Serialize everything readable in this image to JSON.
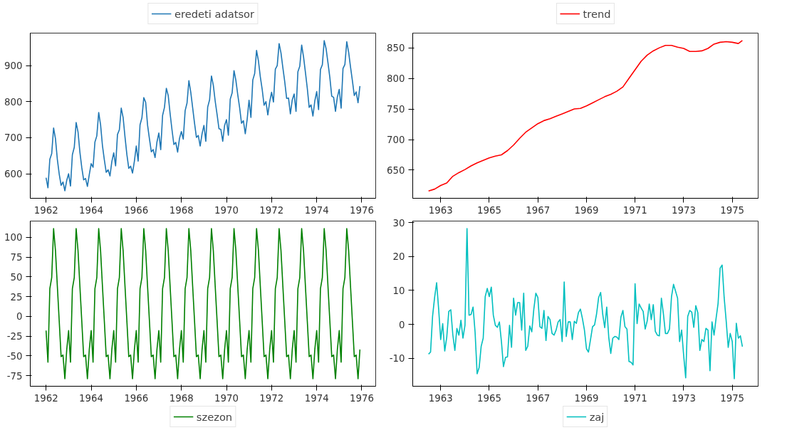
{
  "chart_data": [
    {
      "type": "line",
      "legend": "top",
      "grid": false,
      "x": [
        "1962-01",
        "1962-02",
        "1962-03",
        "1962-04",
        "1962-05",
        "1962-06",
        "1962-07",
        "1962-08",
        "1962-09",
        "1962-10",
        "1962-11",
        "1962-12",
        "1963-01",
        "1963-02",
        "1963-03",
        "1963-04",
        "1963-05",
        "1963-06",
        "1963-07",
        "1963-08",
        "1963-09",
        "1963-10",
        "1963-11",
        "1963-12",
        "1964-01",
        "1964-02",
        "1964-03",
        "1964-04",
        "1964-05",
        "1964-06",
        "1964-07",
        "1964-08",
        "1964-09",
        "1964-10",
        "1964-11",
        "1964-12",
        "1965-01",
        "1965-02",
        "1965-03",
        "1965-04",
        "1965-05",
        "1965-06",
        "1965-07",
        "1965-08",
        "1965-09",
        "1965-10",
        "1965-11",
        "1965-12",
        "1966-01",
        "1966-02",
        "1966-03",
        "1966-04",
        "1966-05",
        "1966-06",
        "1966-07",
        "1966-08",
        "1966-09",
        "1966-10",
        "1966-11",
        "1966-12",
        "1967-01",
        "1967-02",
        "1967-03",
        "1967-04",
        "1967-05",
        "1967-06",
        "1967-07",
        "1967-08",
        "1967-09",
        "1967-10",
        "1967-11",
        "1967-12",
        "1968-01",
        "1968-02",
        "1968-03",
        "1968-04",
        "1968-05",
        "1968-06",
        "1968-07",
        "1968-08",
        "1968-09",
        "1968-10",
        "1968-11",
        "1968-12",
        "1969-01",
        "1969-02",
        "1969-03",
        "1969-04",
        "1969-05",
        "1969-06",
        "1969-07",
        "1969-08",
        "1969-09",
        "1969-10",
        "1969-11",
        "1969-12",
        "1970-01",
        "1970-02",
        "1970-03",
        "1970-04",
        "1970-05",
        "1970-06",
        "1970-07",
        "1970-08",
        "1970-09",
        "1970-10",
        "1970-11",
        "1970-12",
        "1971-01",
        "1971-02",
        "1971-03",
        "1971-04",
        "1971-05",
        "1971-06",
        "1971-07",
        "1971-08",
        "1971-09",
        "1971-10",
        "1971-11",
        "1971-12",
        "1972-01",
        "1972-02",
        "1972-03",
        "1972-04",
        "1972-05",
        "1972-06",
        "1972-07",
        "1972-08",
        "1972-09",
        "1972-10",
        "1972-11",
        "1972-12",
        "1973-01",
        "1973-02",
        "1973-03",
        "1973-04",
        "1973-05",
        "1973-06",
        "1973-07",
        "1973-08",
        "1973-09",
        "1973-10",
        "1973-11",
        "1973-12",
        "1974-01",
        "1974-02",
        "1974-03",
        "1974-04",
        "1974-05",
        "1974-06",
        "1974-07",
        "1974-08",
        "1974-09",
        "1974-10",
        "1974-11",
        "1974-12",
        "1975-01",
        "1975-02",
        "1975-03",
        "1975-04",
        "1975-05",
        "1975-06",
        "1975-07",
        "1975-08",
        "1975-09",
        "1975-10",
        "1975-11",
        "1975-12"
      ],
      "xlim": [
        "1961-04-19",
        "1976-08-13"
      ],
      "xticks": [
        "1962",
        "1964",
        "1966",
        "1968",
        "1970",
        "1972",
        "1974",
        "1976"
      ],
      "ylim": [
        532,
        990
      ],
      "yticks": [
        600,
        700,
        800,
        900
      ],
      "series": [
        {
          "name": "eredeti adatsor",
          "color": "#1f77b4",
          "values": [
            589,
            561,
            640,
            656,
            727,
            697,
            640,
            599,
            568,
            577,
            553,
            582,
            600,
            566,
            653,
            673,
            742,
            716,
            660,
            617,
            583,
            587,
            565,
            598,
            628,
            618,
            688,
            705,
            770,
            736,
            678,
            639,
            604,
            611,
            594,
            634,
            658,
            622,
            709,
            722,
            782,
            756,
            702,
            653,
            615,
            621,
            602,
            635,
            677,
            635,
            736,
            755,
            811,
            798,
            735,
            697,
            661,
            667,
            645,
            688,
            713,
            667,
            762,
            784,
            837,
            817,
            767,
            722,
            681,
            687,
            660,
            698,
            717,
            696,
            775,
            796,
            858,
            826,
            783,
            740,
            701,
            706,
            677,
            711,
            734,
            690,
            785,
            805,
            871,
            845,
            801,
            764,
            725,
            723,
            690,
            734,
            750,
            707,
            807,
            824,
            886,
            859,
            819,
            783,
            740,
            747,
            711,
            751,
            804,
            756,
            860,
            878,
            942,
            913,
            869,
            834,
            790,
            800,
            763,
            800,
            826,
            799,
            890,
            900,
            961,
            935,
            894,
            855,
            809,
            810,
            766,
            805,
            821,
            773,
            883,
            898,
            957,
            924,
            881,
            837,
            784,
            791,
            760,
            802,
            828,
            778,
            889,
            902,
            969,
            947,
            908,
            867,
            815,
            812,
            773,
            813,
            834,
            782,
            892,
            903,
            966,
            937,
            896,
            858,
            817,
            827,
            797,
            843
          ]
        }
      ]
    },
    {
      "type": "line",
      "legend": "top",
      "grid": false,
      "x": [
        "1962-07",
        "1962-10",
        "1963-01",
        "1963-04",
        "1963-07",
        "1963-10",
        "1964-01",
        "1964-04",
        "1964-07",
        "1964-10",
        "1965-01",
        "1965-04",
        "1965-07",
        "1965-10",
        "1966-01",
        "1966-04",
        "1966-07",
        "1966-10",
        "1967-01",
        "1967-04",
        "1967-07",
        "1967-10",
        "1968-01",
        "1968-04",
        "1968-07",
        "1968-10",
        "1969-01",
        "1969-04",
        "1969-07",
        "1969-10",
        "1970-01",
        "1970-04",
        "1970-07",
        "1970-10",
        "1971-01",
        "1971-04",
        "1971-07",
        "1971-10",
        "1972-01",
        "1972-04",
        "1972-07",
        "1972-10",
        "1973-01",
        "1973-04",
        "1973-07",
        "1973-10",
        "1974-01",
        "1974-04",
        "1974-07",
        "1974-10",
        "1975-01",
        "1975-04",
        "1975-06"
      ],
      "xlim": [
        "1961-11-07",
        "1976-01-25"
      ],
      "xticks": [
        "1963",
        "1965",
        "1967",
        "1969",
        "1971",
        "1973",
        "1975"
      ],
      "ylim": [
        604,
        874
      ],
      "yticks": [
        650,
        700,
        750,
        800,
        850
      ],
      "series": [
        {
          "name": "trend",
          "color": "#ff0000",
          "values": [
            616,
            619,
            625,
            629,
            640,
            646,
            651,
            657,
            662,
            666,
            670,
            673,
            675,
            682,
            691,
            702,
            712,
            719,
            726,
            731,
            734,
            738,
            742,
            746,
            750,
            751,
            755,
            760,
            765,
            770,
            774,
            779,
            786,
            800,
            814,
            828,
            838,
            845,
            850,
            854,
            854,
            851,
            849,
            844,
            844,
            845,
            849,
            856,
            859,
            860,
            859,
            857,
            862
          ]
        }
      ]
    },
    {
      "type": "line",
      "legend": "bottom",
      "grid": false,
      "x": [
        "1962-01",
        "1962-02",
        "1962-03",
        "1962-04",
        "1962-05",
        "1962-06",
        "1962-07",
        "1962-08",
        "1962-09",
        "1962-10",
        "1962-11",
        "1962-12",
        "1963-01",
        "1963-02",
        "1963-03",
        "1963-04",
        "1963-05",
        "1963-06",
        "1963-07",
        "1963-08",
        "1963-09",
        "1963-10",
        "1963-11",
        "1963-12",
        "1964-01",
        "1964-02",
        "1964-03",
        "1964-04",
        "1964-05",
        "1964-06",
        "1964-07",
        "1964-08",
        "1964-09",
        "1964-10",
        "1964-11",
        "1964-12",
        "1965-01",
        "1965-02",
        "1965-03",
        "1965-04",
        "1965-05",
        "1965-06",
        "1965-07",
        "1965-08",
        "1965-09",
        "1965-10",
        "1965-11",
        "1965-12",
        "1966-01",
        "1966-02",
        "1966-03",
        "1966-04",
        "1966-05",
        "1966-06",
        "1966-07",
        "1966-08",
        "1966-09",
        "1966-10",
        "1966-11",
        "1966-12",
        "1967-01",
        "1967-02",
        "1967-03",
        "1967-04",
        "1967-05",
        "1967-06",
        "1967-07",
        "1967-08",
        "1967-09",
        "1967-10",
        "1967-11",
        "1967-12",
        "1968-01",
        "1968-02",
        "1968-03",
        "1968-04",
        "1968-05",
        "1968-06",
        "1968-07",
        "1968-08",
        "1968-09",
        "1968-10",
        "1968-11",
        "1968-12",
        "1969-01",
        "1969-02",
        "1969-03",
        "1969-04",
        "1969-05",
        "1969-06",
        "1969-07",
        "1969-08",
        "1969-09",
        "1969-10",
        "1969-11",
        "1969-12",
        "1970-01",
        "1970-02",
        "1970-03",
        "1970-04",
        "1970-05",
        "1970-06",
        "1970-07",
        "1970-08",
        "1970-09",
        "1970-10",
        "1970-11",
        "1970-12",
        "1971-01",
        "1971-02",
        "1971-03",
        "1971-04",
        "1971-05",
        "1971-06",
        "1971-07",
        "1971-08",
        "1971-09",
        "1971-10",
        "1971-11",
        "1971-12",
        "1972-01",
        "1972-02",
        "1972-03",
        "1972-04",
        "1972-05",
        "1972-06",
        "1972-07",
        "1972-08",
        "1972-09",
        "1972-10",
        "1972-11",
        "1972-12",
        "1973-01",
        "1973-02",
        "1973-03",
        "1973-04",
        "1973-05",
        "1973-06",
        "1973-07",
        "1973-08",
        "1973-09",
        "1973-10",
        "1973-11",
        "1973-12",
        "1974-01",
        "1974-02",
        "1974-03",
        "1974-04",
        "1974-05",
        "1974-06",
        "1974-07",
        "1974-08",
        "1974-09",
        "1974-10",
        "1974-11",
        "1974-12",
        "1975-01",
        "1975-02",
        "1975-03",
        "1975-04",
        "1975-05",
        "1975-06",
        "1975-07",
        "1975-08",
        "1975-09",
        "1975-10",
        "1975-11",
        "1975-12"
      ],
      "xlim": [
        "1961-04-19",
        "1976-08-13"
      ],
      "xticks": [
        "1962",
        "1964",
        "1966",
        "1968",
        "1970",
        "1972",
        "1974",
        "1976"
      ],
      "ylim": [
        -88.5,
        120.5
      ],
      "yticks": [
        -75,
        -50,
        -25,
        0,
        25,
        50,
        75,
        100
      ],
      "series": [
        {
          "name": "szezon",
          "color": "#008000",
          "values": [
            -18,
            -58,
            35,
            49,
            111,
            83,
            38,
            -6,
            -51,
            -49,
            -79,
            -42,
            -18,
            -58,
            35,
            49,
            111,
            83,
            38,
            -6,
            -51,
            -49,
            -79,
            -42,
            -18,
            -58,
            35,
            49,
            111,
            83,
            38,
            -6,
            -51,
            -49,
            -79,
            -42,
            -18,
            -58,
            35,
            49,
            111,
            83,
            38,
            -6,
            -51,
            -49,
            -79,
            -42,
            -18,
            -58,
            35,
            49,
            111,
            83,
            38,
            -6,
            -51,
            -49,
            -79,
            -42,
            -18,
            -58,
            35,
            49,
            111,
            83,
            38,
            -6,
            -51,
            -49,
            -79,
            -42,
            -18,
            -58,
            35,
            49,
            111,
            83,
            38,
            -6,
            -51,
            -49,
            -79,
            -42,
            -18,
            -58,
            35,
            49,
            111,
            83,
            38,
            -6,
            -51,
            -49,
            -79,
            -42,
            -18,
            -58,
            35,
            49,
            111,
            83,
            38,
            -6,
            -51,
            -49,
            -79,
            -42,
            -18,
            -58,
            35,
            49,
            111,
            83,
            38,
            -6,
            -51,
            -49,
            -79,
            -42,
            -18,
            -58,
            35,
            49,
            111,
            83,
            38,
            -6,
            -51,
            -49,
            -79,
            -42,
            -18,
            -58,
            35,
            49,
            111,
            83,
            38,
            -6,
            -51,
            -49,
            -79,
            -42,
            -18,
            -58,
            35,
            49,
            111,
            83,
            38,
            -6,
            -51,
            -49,
            -79,
            -42,
            -18,
            -58,
            35,
            49,
            111,
            83,
            38,
            -6,
            -51,
            -49,
            -79,
            -42
          ]
        }
      ]
    },
    {
      "type": "line",
      "legend": "bottom",
      "grid": false,
      "x": [
        "1962-07",
        "1962-08",
        "1962-09",
        "1962-10",
        "1962-11",
        "1962-12",
        "1963-01",
        "1963-02",
        "1963-03",
        "1963-04",
        "1963-05",
        "1963-06",
        "1963-07",
        "1963-08",
        "1963-09",
        "1963-10",
        "1963-11",
        "1963-12",
        "1964-01",
        "1964-02",
        "1964-03",
        "1964-04",
        "1964-05",
        "1964-06",
        "1964-07",
        "1964-08",
        "1964-09",
        "1964-10",
        "1964-11",
        "1964-12",
        "1965-01",
        "1965-02",
        "1965-03",
        "1965-04",
        "1965-05",
        "1965-06",
        "1965-07",
        "1965-08",
        "1965-09",
        "1965-10",
        "1965-11",
        "1965-12",
        "1966-01",
        "1966-02",
        "1966-03",
        "1966-04",
        "1966-05",
        "1966-06",
        "1966-07",
        "1966-08",
        "1966-09",
        "1966-10",
        "1966-11",
        "1966-12",
        "1967-01",
        "1967-02",
        "1967-03",
        "1967-04",
        "1967-05",
        "1967-06",
        "1967-07",
        "1967-08",
        "1967-09",
        "1967-10",
        "1967-11",
        "1967-12",
        "1968-01",
        "1968-02",
        "1968-03",
        "1968-04",
        "1968-05",
        "1968-06",
        "1968-07",
        "1968-08",
        "1968-09",
        "1968-10",
        "1968-11",
        "1968-12",
        "1969-01",
        "1969-02",
        "1969-03",
        "1969-04",
        "1969-05",
        "1969-06",
        "1969-07",
        "1969-08",
        "1969-09",
        "1969-10",
        "1969-11",
        "1969-12",
        "1970-01",
        "1970-02",
        "1970-03",
        "1970-04",
        "1970-05",
        "1970-06",
        "1970-07",
        "1970-08",
        "1970-09",
        "1970-10",
        "1970-11",
        "1970-12",
        "1971-01",
        "1971-02",
        "1971-03",
        "1971-04",
        "1971-05",
        "1971-06",
        "1971-07",
        "1971-08",
        "1971-09",
        "1971-10",
        "1971-11",
        "1971-12",
        "1972-01",
        "1972-02",
        "1972-03",
        "1972-04",
        "1972-05",
        "1972-06",
        "1972-07",
        "1972-08",
        "1972-09",
        "1972-10",
        "1972-11",
        "1972-12",
        "1973-01",
        "1973-02",
        "1973-03",
        "1973-04",
        "1973-05",
        "1973-06",
        "1973-07",
        "1973-08",
        "1973-09",
        "1973-10",
        "1973-11",
        "1973-12",
        "1974-01",
        "1974-02",
        "1974-03",
        "1974-04",
        "1974-05",
        "1974-06",
        "1974-07",
        "1974-08",
        "1974-09",
        "1974-10",
        "1974-11",
        "1974-12",
        "1975-01",
        "1975-02",
        "1975-03",
        "1975-04",
        "1975-05",
        "1975-06"
      ],
      "xlim": [
        "1961-11-07",
        "1976-01-25"
      ],
      "xticks": [
        "1963",
        "1965",
        "1967",
        "1969",
        "1971",
        "1973",
        "1975"
      ],
      "ylim": [
        -18.3,
        30.5
      ],
      "yticks": [
        -10,
        0,
        10,
        20,
        30
      ],
      "series": [
        {
          "name": "zaj",
          "color": "#00bfbf",
          "values": [
            -8.8,
            -8.2,
            2.4,
            7.9,
            12.3,
            4.5,
            -4.5,
            0.2,
            -7.9,
            -3.8,
            3.8,
            4.3,
            -3.1,
            -7.7,
            -1.2,
            -3.2,
            1.2,
            -4.1,
            -0.3,
            28.3,
            2.7,
            2.9,
            5.1,
            -2.4,
            -14.6,
            -12.8,
            -6.5,
            -4.1,
            8.2,
            10.6,
            8.2,
            11.0,
            2.7,
            -0.3,
            -0.9,
            0.7,
            -5.1,
            -12.5,
            -9.8,
            -9.6,
            -0.3,
            -6.8,
            7.7,
            2.7,
            6.4,
            6.4,
            -1.7,
            9.2,
            -7.7,
            -6.5,
            -0.5,
            -2.2,
            4.5,
            9.2,
            7.9,
            -0.7,
            -1.2,
            4.1,
            -4.8,
            2.3,
            1.4,
            -2.7,
            -3.2,
            -1.7,
            0.7,
            1.4,
            -5.1,
            12.5,
            -3.6,
            0.7,
            0.7,
            -4.5,
            0.9,
            0.3,
            3.4,
            4.5,
            1.7,
            -1.7,
            -7.2,
            -8.2,
            -4.5,
            -0.7,
            -0.2,
            3.1,
            7.9,
            9.4,
            3.1,
            -1.0,
            5.1,
            -3.8,
            -8.6,
            -4.1,
            -3.6,
            -3.8,
            -4.5,
            2.1,
            4.1,
            -0.7,
            -1.4,
            -11.0,
            -11.2,
            -12.0,
            12.0,
            0.2,
            6.0,
            4.8,
            3.8,
            -1.4,
            1.0,
            6.0,
            1.4,
            5.8,
            -2.1,
            -3.2,
            -3.4,
            7.7,
            3.1,
            -2.7,
            -2.7,
            -1.4,
            8.2,
            11.8,
            9.8,
            7.7,
            -5.1,
            -1.7,
            -9.2,
            -15.8,
            2.3,
            4.1,
            3.6,
            -0.9,
            5.5,
            3.4,
            -7.7,
            -4.5,
            -5.1,
            -1.2,
            -1.7,
            -13.7,
            0.7,
            -3.2,
            1.7,
            6.2,
            16.6,
            17.5,
            7.9,
            1.0,
            -6.8,
            -2.7,
            -5.1,
            -16.1,
            0.3,
            -4.1,
            -3.4,
            -6.6
          ]
        }
      ]
    }
  ]
}
